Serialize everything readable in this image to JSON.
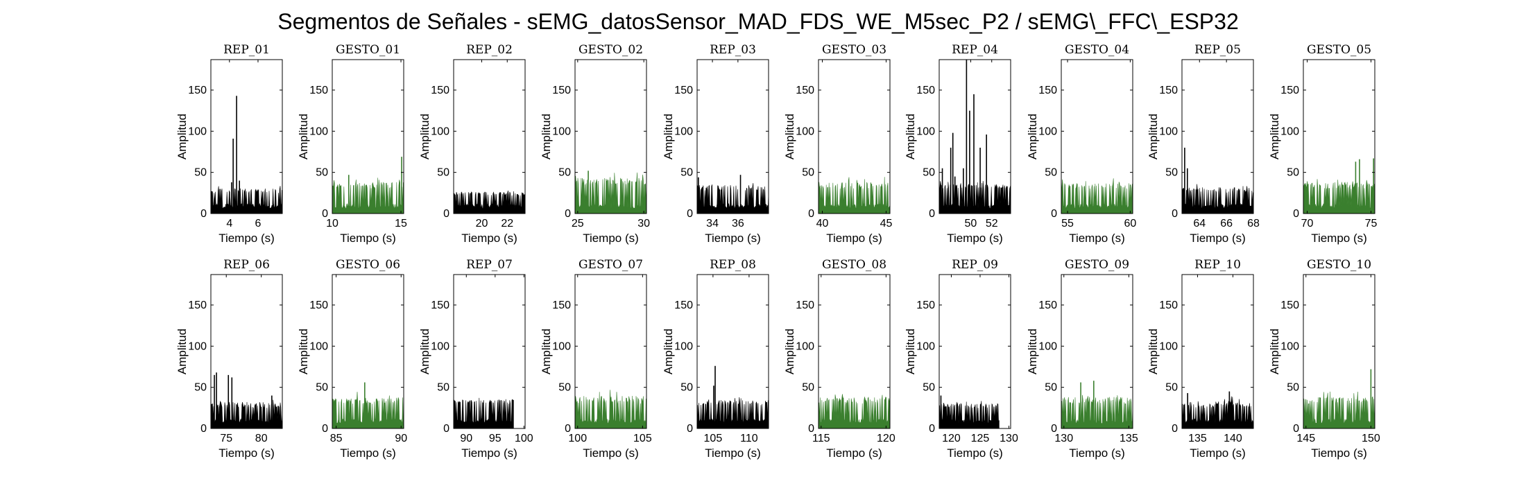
{
  "figure": {
    "title": "Segmentos de Señales - sEMG_datosSensor_MAD_FDS_WE_M5sec_P2 / sEMG\\_FFC\\_ESP32"
  },
  "colors": {
    "rep": "#000000",
    "gesto": "#3a7f2e"
  },
  "chart_data": [
    {
      "type": "area",
      "title": "REP_01",
      "xlabel": "Tiempo (s)",
      "ylabel": "Amplitud",
      "xlim": [
        2.7,
        7.7
      ],
      "ylim": [
        0,
        187
      ],
      "xticks": [
        4,
        6
      ],
      "yticks": [
        0,
        50,
        100,
        150
      ],
      "series": [
        {
          "name": "REP_01",
          "color": "rep",
          "baseline_max": [
            25,
            35
          ],
          "peaks": [
            [
              4.26,
              91
            ],
            [
              4.5,
              143
            ],
            [
              4.15,
              38
            ],
            [
              4.7,
              40
            ]
          ]
        }
      ]
    },
    {
      "type": "area",
      "title": "GESTO_01",
      "xlabel": "Tiempo (s)",
      "ylabel": "Amplitud",
      "xlim": [
        10,
        15.2
      ],
      "ylim": [
        0,
        187
      ],
      "xticks": [
        10,
        15
      ],
      "yticks": [
        0,
        50,
        100,
        150
      ],
      "series": [
        {
          "name": "GESTO_01",
          "color": "gesto",
          "baseline_max": [
            30,
            45
          ],
          "peaks": [
            [
              15.05,
              69
            ],
            [
              11.2,
              47
            ]
          ]
        }
      ]
    },
    {
      "type": "area",
      "title": "REP_02",
      "xlabel": "Tiempo (s)",
      "ylabel": "Amplitud",
      "xlim": [
        17.8,
        23.4
      ],
      "ylim": [
        0,
        187
      ],
      "xticks": [
        20,
        22
      ],
      "yticks": [
        0,
        50,
        100,
        150
      ],
      "series": [
        {
          "name": "REP_02",
          "color": "rep",
          "baseline_max": [
            22,
            30
          ],
          "peaks": []
        }
      ]
    },
    {
      "type": "area",
      "title": "GESTO_02",
      "xlabel": "Tiempo (s)",
      "ylabel": "Amplitud",
      "xlim": [
        24.8,
        30.2
      ],
      "ylim": [
        0,
        187
      ],
      "xticks": [
        25,
        30
      ],
      "yticks": [
        0,
        50,
        100,
        150
      ],
      "series": [
        {
          "name": "GESTO_02",
          "color": "gesto",
          "baseline_max": [
            35,
            50
          ],
          "peaks": [
            [
              25.8,
              52
            ]
          ]
        }
      ]
    },
    {
      "type": "area",
      "title": "REP_03",
      "xlabel": "Tiempo (s)",
      "ylabel": "Amplitud",
      "xlim": [
        32.8,
        38.4
      ],
      "ylim": [
        0,
        187
      ],
      "xticks": [
        34,
        36
      ],
      "yticks": [
        0,
        50,
        100,
        150
      ],
      "series": [
        {
          "name": "REP_03",
          "color": "rep",
          "baseline_max": [
            28,
            40
          ],
          "peaks": [
            [
              32.9,
              44
            ],
            [
              36.2,
              47
            ]
          ]
        }
      ]
    },
    {
      "type": "area",
      "title": "GESTO_03",
      "xlabel": "Tiempo (s)",
      "ylabel": "Amplitud",
      "xlim": [
        39.7,
        45.3
      ],
      "ylim": [
        0,
        187
      ],
      "xticks": [
        40,
        45
      ],
      "yticks": [
        0,
        50,
        100,
        150
      ],
      "series": [
        {
          "name": "GESTO_03",
          "color": "gesto",
          "baseline_max": [
            30,
            45
          ],
          "peaks": []
        }
      ]
    },
    {
      "type": "area",
      "title": "REP_04",
      "xlabel": "Tiempo (s)",
      "ylabel": "Amplitud",
      "xlim": [
        47,
        53.8
      ],
      "ylim": [
        0,
        187
      ],
      "xticks": [
        50,
        52
      ],
      "yticks": [
        0,
        50,
        100,
        150
      ],
      "series": [
        {
          "name": "REP_04",
          "color": "rep",
          "baseline_max": [
            30,
            40
          ],
          "peaks": [
            [
              47.3,
              55
            ],
            [
              48.1,
              80
            ],
            [
              48.3,
              98
            ],
            [
              48.5,
              45
            ],
            [
              49.3,
              55
            ],
            [
              49.6,
              187
            ],
            [
              49.9,
              125
            ],
            [
              50.3,
              145
            ],
            [
              50.9,
              80
            ],
            [
              51.5,
              96
            ]
          ]
        }
      ]
    },
    {
      "type": "area",
      "title": "GESTO_04",
      "xlabel": "Tiempo (s)",
      "ylabel": "Amplitud",
      "xlim": [
        54.5,
        60.2
      ],
      "ylim": [
        0,
        187
      ],
      "xticks": [
        55,
        60
      ],
      "yticks": [
        0,
        50,
        100,
        150
      ],
      "series": [
        {
          "name": "GESTO_04",
          "color": "gesto",
          "baseline_max": [
            30,
            43
          ],
          "peaks": []
        }
      ]
    },
    {
      "type": "area",
      "title": "REP_05",
      "xlabel": "Tiempo (s)",
      "ylabel": "Amplitud",
      "xlim": [
        62.7,
        68
      ],
      "ylim": [
        0,
        187
      ],
      "xticks": [
        64,
        66,
        68
      ],
      "yticks": [
        0,
        50,
        100,
        150
      ],
      "series": [
        {
          "name": "REP_05",
          "color": "rep",
          "baseline_max": [
            25,
            38
          ],
          "peaks": [
            [
              62.9,
              80
            ],
            [
              63.1,
              55
            ]
          ]
        }
      ]
    },
    {
      "type": "area",
      "title": "GESTO_05",
      "xlabel": "Tiempo (s)",
      "ylabel": "Amplitud",
      "xlim": [
        69.7,
        75.3
      ],
      "ylim": [
        0,
        187
      ],
      "xticks": [
        70,
        75
      ],
      "yticks": [
        0,
        50,
        100,
        150
      ],
      "series": [
        {
          "name": "GESTO_05",
          "color": "gesto",
          "baseline_max": [
            30,
            45
          ],
          "peaks": [
            [
              73.8,
              63
            ],
            [
              74.1,
              66
            ],
            [
              75.2,
              67
            ]
          ]
        }
      ]
    },
    {
      "type": "area",
      "title": "REP_06",
      "xlabel": "Tiempo (s)",
      "ylabel": "Amplitud",
      "xlim": [
        72.8,
        83
      ],
      "ylim": [
        0,
        187
      ],
      "xticks": [
        75,
        80
      ],
      "yticks": [
        0,
        50,
        100,
        150
      ],
      "series": [
        {
          "name": "REP_06",
          "color": "rep",
          "baseline_max": [
            25,
            38
          ],
          "peaks": [
            [
              73.3,
              65
            ],
            [
              73.6,
              68
            ],
            [
              75.3,
              65
            ],
            [
              75.8,
              62
            ],
            [
              81.5,
              40
            ]
          ]
        }
      ]
    },
    {
      "type": "area",
      "title": "GESTO_06",
      "xlabel": "Tiempo (s)",
      "ylabel": "Amplitud",
      "xlim": [
        84.7,
        90.2
      ],
      "ylim": [
        0,
        187
      ],
      "xticks": [
        85,
        90
      ],
      "yticks": [
        0,
        50,
        100,
        150
      ],
      "series": [
        {
          "name": "GESTO_06",
          "color": "gesto",
          "baseline_max": [
            30,
            45
          ],
          "peaks": [
            [
              87.2,
              56
            ]
          ]
        }
      ]
    },
    {
      "type": "area",
      "title": "REP_07",
      "xlabel": "Tiempo (s)",
      "ylabel": "Amplitud",
      "xlim": [
        87.8,
        100.2
      ],
      "ylim": [
        0,
        187
      ],
      "xticks": [
        90,
        95,
        100
      ],
      "yticks": [
        0,
        50,
        100,
        150
      ],
      "series": [
        {
          "name": "REP_07",
          "color": "rep",
          "baseline_max": [
            30,
            40
          ],
          "peaks": [],
          "end": 98.2
        }
      ]
    },
    {
      "type": "area",
      "title": "GESTO_07",
      "xlabel": "Tiempo (s)",
      "ylabel": "Amplitud",
      "xlim": [
        99.8,
        105.3
      ],
      "ylim": [
        0,
        187
      ],
      "xticks": [
        100,
        105
      ],
      "yticks": [
        0,
        50,
        100,
        150
      ],
      "series": [
        {
          "name": "GESTO_07",
          "color": "gesto",
          "baseline_max": [
            30,
            48
          ],
          "peaks": []
        }
      ]
    },
    {
      "type": "area",
      "title": "REP_08",
      "xlabel": "Tiempo (s)",
      "ylabel": "Amplitud",
      "xlim": [
        102.8,
        112.7
      ],
      "ylim": [
        0,
        187
      ],
      "xticks": [
        105,
        110
      ],
      "yticks": [
        0,
        50,
        100,
        150
      ],
      "series": [
        {
          "name": "REP_08",
          "color": "rep",
          "baseline_max": [
            28,
            40
          ],
          "peaks": [
            [
              105.3,
              76
            ],
            [
              105.1,
              52
            ]
          ]
        }
      ]
    },
    {
      "type": "area",
      "title": "GESTO_08",
      "xlabel": "Tiempo (s)",
      "ylabel": "Amplitud",
      "xlim": [
        114.8,
        120.3
      ],
      "ylim": [
        0,
        187
      ],
      "xticks": [
        115,
        120
      ],
      "yticks": [
        0,
        50,
        100,
        150
      ],
      "series": [
        {
          "name": "GESTO_08",
          "color": "gesto",
          "baseline_max": [
            30,
            45
          ],
          "peaks": []
        }
      ]
    },
    {
      "type": "area",
      "title": "REP_09",
      "xlabel": "Tiempo (s)",
      "ylabel": "Amplitud",
      "xlim": [
        117.9,
        130.3
      ],
      "ylim": [
        0,
        187
      ],
      "xticks": [
        120,
        125,
        130
      ],
      "yticks": [
        0,
        50,
        100,
        150
      ],
      "series": [
        {
          "name": "REP_09",
          "color": "rep",
          "baseline_max": [
            25,
            35
          ],
          "peaks": [
            [
              118.2,
              40
            ]
          ],
          "end": 128.3
        }
      ]
    },
    {
      "type": "area",
      "title": "GESTO_09",
      "xlabel": "Tiempo (s)",
      "ylabel": "Amplitud",
      "xlim": [
        129.8,
        135.3
      ],
      "ylim": [
        0,
        187
      ],
      "xticks": [
        130,
        135
      ],
      "yticks": [
        0,
        50,
        100,
        150
      ],
      "series": [
        {
          "name": "GESTO_09",
          "color": "gesto",
          "baseline_max": [
            30,
            45
          ],
          "peaks": [
            [
              131.3,
              56
            ],
            [
              132.3,
              58
            ]
          ]
        }
      ]
    },
    {
      "type": "area",
      "title": "REP_10",
      "xlabel": "Tiempo (s)",
      "ylabel": "Amplitud",
      "xlim": [
        132.8,
        142.9
      ],
      "ylim": [
        0,
        187
      ],
      "xticks": [
        135,
        140
      ],
      "yticks": [
        0,
        50,
        100,
        150
      ],
      "series": [
        {
          "name": "REP_10",
          "color": "rep",
          "baseline_max": [
            25,
            40
          ],
          "peaks": [
            [
              133.6,
              43
            ],
            [
              139.5,
              45
            ]
          ]
        }
      ]
    },
    {
      "type": "area",
      "title": "GESTO_10",
      "xlabel": "Tiempo (s)",
      "ylabel": "Amplitud",
      "xlim": [
        144.8,
        150.3
      ],
      "ylim": [
        0,
        187
      ],
      "xticks": [
        145,
        150
      ],
      "yticks": [
        0,
        50,
        100,
        150
      ],
      "series": [
        {
          "name": "GESTO_10",
          "color": "gesto",
          "baseline_max": [
            30,
            45
          ],
          "peaks": [
            [
              150,
              72
            ]
          ]
        }
      ]
    }
  ]
}
